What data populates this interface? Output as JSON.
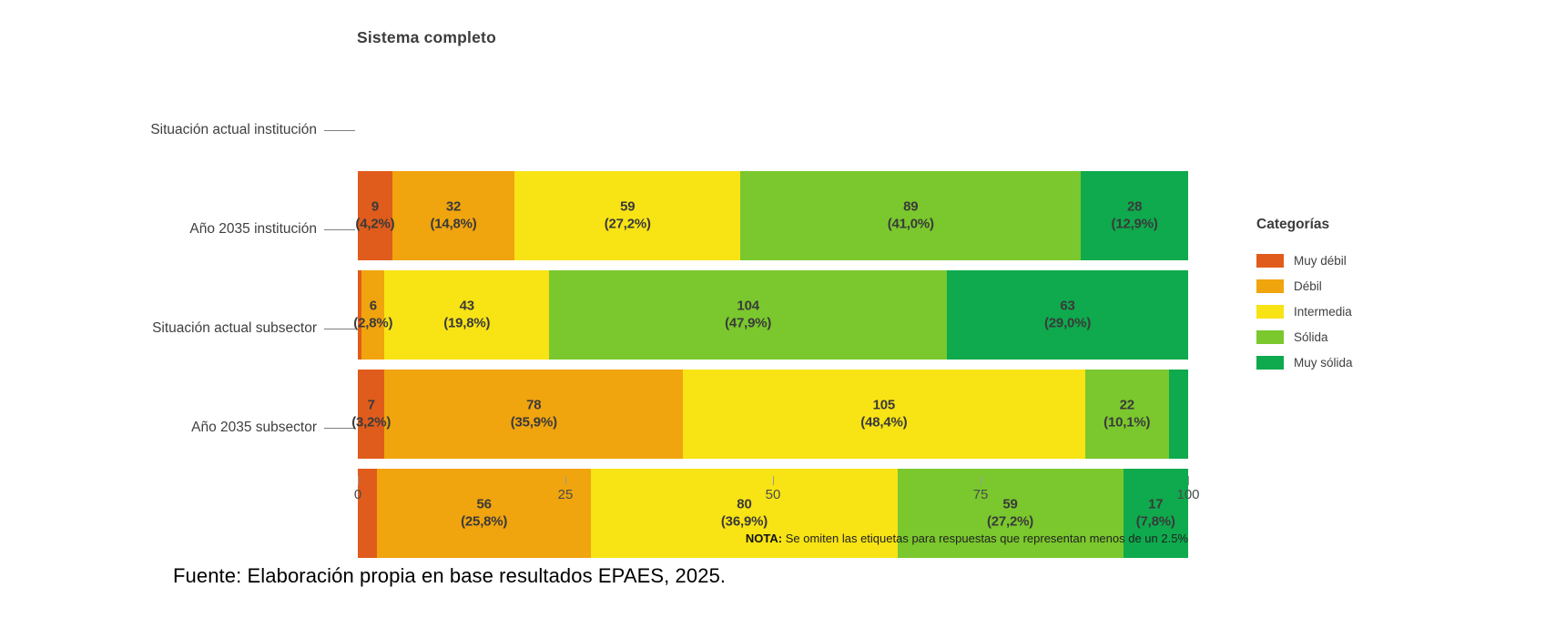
{
  "chart_data": {
    "type": "bar",
    "variant": "horizontal-stacked-100pct",
    "title": "Sistema completo",
    "categories": [
      "Situación actual institución",
      "Año 2035 institución",
      "Situación actual subsector",
      "Año 2035 subsector"
    ],
    "series": [
      {
        "name": "Muy débil",
        "color": "#E05C1C",
        "values": [
          9,
          1,
          7,
          5
        ]
      },
      {
        "name": "Débil",
        "color": "#F0A40E",
        "values": [
          32,
          6,
          78,
          56
        ]
      },
      {
        "name": "Intermedia",
        "color": "#F8E315",
        "values": [
          59,
          43,
          105,
          80
        ]
      },
      {
        "name": "Sólida",
        "color": "#7AC82D",
        "values": [
          89,
          104,
          22,
          59
        ]
      },
      {
        "name": "Muy sólida",
        "color": "#0EAA4D",
        "values": [
          28,
          63,
          5,
          17
        ]
      }
    ],
    "row_total": 217,
    "segment_labels": [
      [
        {
          "value": "9",
          "pct": "(4,2%)"
        },
        {
          "value": "32",
          "pct": "(14,8%)"
        },
        {
          "value": "59",
          "pct": "(27,2%)"
        },
        {
          "value": "89",
          "pct": "(41,0%)"
        },
        {
          "value": "28",
          "pct": "(12,9%)"
        }
      ],
      [
        null,
        {
          "value": "6",
          "pct": "(2,8%)"
        },
        {
          "value": "43",
          "pct": "(19,8%)"
        },
        {
          "value": "104",
          "pct": "(47,9%)"
        },
        {
          "value": "63",
          "pct": "(29,0%)"
        }
      ],
      [
        {
          "value": "7",
          "pct": "(3,2%)"
        },
        {
          "value": "78",
          "pct": "(35,9%)"
        },
        {
          "value": "105",
          "pct": "(48,4%)"
        },
        {
          "value": "22",
          "pct": "(10,1%)"
        },
        null
      ],
      [
        null,
        {
          "value": "56",
          "pct": "(25,8%)"
        },
        {
          "value": "80",
          "pct": "(36,9%)"
        },
        {
          "value": "59",
          "pct": "(27,2%)"
        },
        {
          "value": "17",
          "pct": "(7,8%)"
        }
      ]
    ],
    "x_axis": {
      "ticks": [
        "0",
        "25",
        "50",
        "75",
        "100"
      ],
      "range": [
        0,
        100
      ],
      "grid": false
    },
    "legend": {
      "title": "Categorías",
      "position": "right",
      "items": [
        "Muy débil",
        "Débil",
        "Intermedia",
        "Sólida",
        "Muy sólida"
      ]
    }
  },
  "note": {
    "label": "NOTA:",
    "text": " Se omiten las etiquetas para respuestas que representan menos de un 2.5%"
  },
  "source": "Fuente: Elaboración propia en base resultados EPAES, 2025."
}
